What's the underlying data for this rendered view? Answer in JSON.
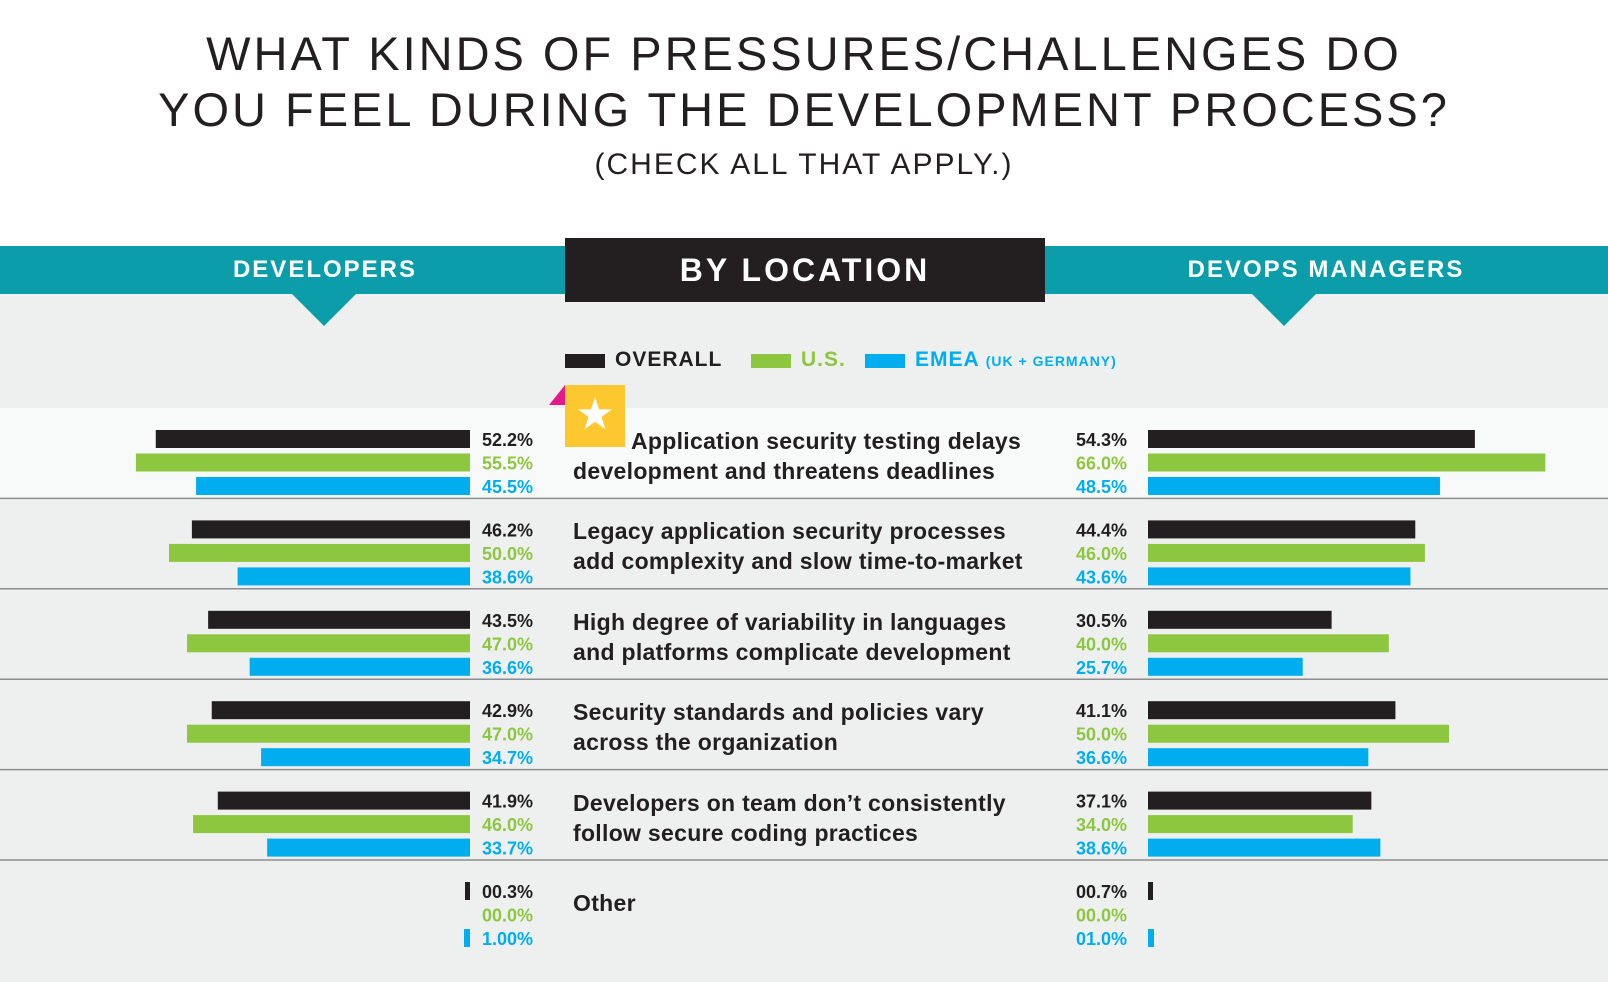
{
  "title_lines": [
    "WHAT KINDS OF PRESSURES/CHALLENGES DO",
    "YOU FEEL DURING THE DEVELOPMENT PROCESS?"
  ],
  "subtitle": "(CHECK ALL THAT APPLY.)",
  "header": {
    "left_label": "DEVELOPERS",
    "center_label": "BY LOCATION",
    "right_label": "DEVOPS MANAGERS"
  },
  "legend": {
    "overall": "OVERALL",
    "us": "U.S.",
    "emea": "EMEA",
    "emea_sub": "(UK + GERMANY)"
  },
  "colors": {
    "overall": "#231f20",
    "us": "#8dc63f",
    "emea": "#00aeef",
    "teal": "#0b9daa",
    "star": "#fdc82f",
    "flag": "#e6198b"
  },
  "icons": {
    "highlight": "star-icon"
  },
  "chart_data": {
    "type": "bar",
    "title": "WHAT KINDS OF PRESSURES/CHALLENGES DO YOU FEEL DURING THE DEVELOPMENT PROCESS?",
    "subtitle": "(CHECK ALL THAT APPLY.)",
    "series": [
      "OVERALL",
      "U.S.",
      "EMEA"
    ],
    "categories": [
      "Application security testing delays development and threatens deadlines",
      "Legacy application security processes add complexity and slow time-to-market",
      "High degree of variability in languages and platforms complicate development",
      "Security standards and policies vary across the organization",
      "Developers on team don’t consistently follow secure coding practices",
      "Other"
    ],
    "rows": [
      {
        "label_lines": [
          "Application security testing delays",
          "development and threatens deadlines"
        ],
        "highlight": true,
        "developers": {
          "values": [
            52.2,
            55.5,
            45.5
          ],
          "labels": [
            "52.2%",
            "55.5%",
            "45.5%"
          ]
        },
        "devops_managers": {
          "values": [
            54.3,
            66.0,
            48.5
          ],
          "labels": [
            "54.3%",
            "66.0%",
            "48.5%"
          ]
        }
      },
      {
        "label_lines": [
          "Legacy application security processes",
          "add complexity and slow time-to-market"
        ],
        "highlight": false,
        "developers": {
          "values": [
            46.2,
            50.0,
            38.6
          ],
          "labels": [
            "46.2%",
            "50.0%",
            "38.6%"
          ]
        },
        "devops_managers": {
          "values": [
            44.4,
            46.0,
            43.6
          ],
          "labels": [
            "44.4%",
            "46.0%",
            "43.6%"
          ]
        }
      },
      {
        "label_lines": [
          "High degree of variability in languages",
          "and platforms complicate development"
        ],
        "highlight": false,
        "developers": {
          "values": [
            43.5,
            47.0,
            36.6
          ],
          "labels": [
            "43.5%",
            "47.0%",
            "36.6%"
          ]
        },
        "devops_managers": {
          "values": [
            30.5,
            40.0,
            25.7
          ],
          "labels": [
            "30.5%",
            "40.0%",
            "25.7%"
          ]
        }
      },
      {
        "label_lines": [
          "Security standards and policies vary",
          "across the organization"
        ],
        "highlight": false,
        "developers": {
          "values": [
            42.9,
            47.0,
            34.7
          ],
          "labels": [
            "42.9%",
            "47.0%",
            "34.7%"
          ]
        },
        "devops_managers": {
          "values": [
            41.1,
            50.0,
            36.6
          ],
          "labels": [
            "41.1%",
            "50.0%",
            "36.6%"
          ]
        }
      },
      {
        "label_lines": [
          "Developers on team don’t consistently",
          "follow secure coding practices"
        ],
        "highlight": false,
        "developers": {
          "values": [
            41.9,
            46.0,
            33.7
          ],
          "labels": [
            "41.9%",
            "46.0%",
            "33.7%"
          ]
        },
        "devops_managers": {
          "values": [
            37.1,
            34.0,
            38.6
          ],
          "labels": [
            "37.1%",
            "34.0%",
            "38.6%"
          ]
        }
      },
      {
        "label_lines": [
          "Other"
        ],
        "highlight": false,
        "developers": {
          "values": [
            0.3,
            0.0,
            1.0
          ],
          "labels": [
            "00.3%",
            "00.0%",
            "1.00%"
          ]
        },
        "devops_managers": {
          "values": [
            0.7,
            0.0,
            1.0
          ],
          "labels": [
            "00.7%",
            "00.0%",
            "01.0%"
          ]
        }
      }
    ]
  }
}
